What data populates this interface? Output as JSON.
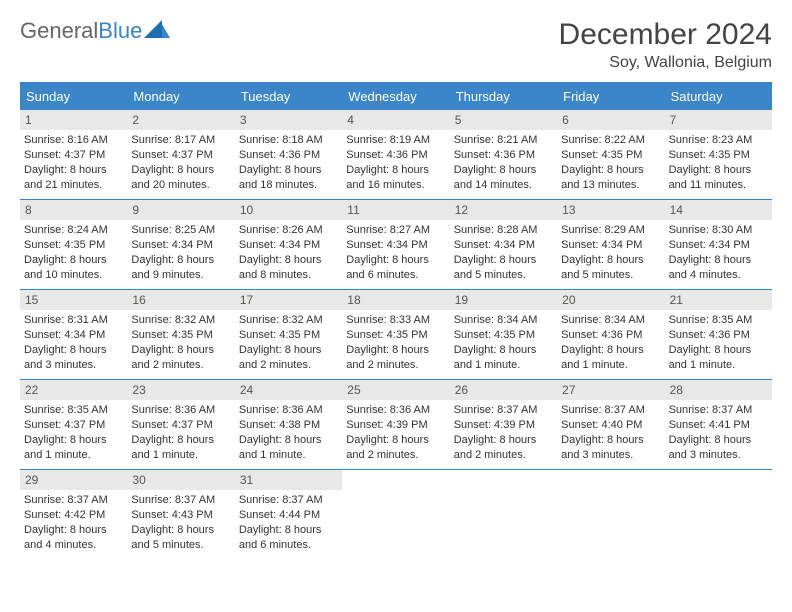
{
  "brand": {
    "part1": "General",
    "part2": "Blue"
  },
  "title": "December 2024",
  "location": "Soy, Wallonia, Belgium",
  "colors": {
    "header_bg": "#3a86c8",
    "daynum_bg": "#e8e8e8",
    "text": "#333333",
    "title_text": "#444444",
    "background": "#ffffff"
  },
  "calendar": {
    "type": "table",
    "day_headers": [
      "Sunday",
      "Monday",
      "Tuesday",
      "Wednesday",
      "Thursday",
      "Friday",
      "Saturday"
    ],
    "days": [
      {
        "n": "1",
        "sunrise": "Sunrise: 8:16 AM",
        "sunset": "Sunset: 4:37 PM",
        "daylight": "Daylight: 8 hours and 21 minutes."
      },
      {
        "n": "2",
        "sunrise": "Sunrise: 8:17 AM",
        "sunset": "Sunset: 4:37 PM",
        "daylight": "Daylight: 8 hours and 20 minutes."
      },
      {
        "n": "3",
        "sunrise": "Sunrise: 8:18 AM",
        "sunset": "Sunset: 4:36 PM",
        "daylight": "Daylight: 8 hours and 18 minutes."
      },
      {
        "n": "4",
        "sunrise": "Sunrise: 8:19 AM",
        "sunset": "Sunset: 4:36 PM",
        "daylight": "Daylight: 8 hours and 16 minutes."
      },
      {
        "n": "5",
        "sunrise": "Sunrise: 8:21 AM",
        "sunset": "Sunset: 4:36 PM",
        "daylight": "Daylight: 8 hours and 14 minutes."
      },
      {
        "n": "6",
        "sunrise": "Sunrise: 8:22 AM",
        "sunset": "Sunset: 4:35 PM",
        "daylight": "Daylight: 8 hours and 13 minutes."
      },
      {
        "n": "7",
        "sunrise": "Sunrise: 8:23 AM",
        "sunset": "Sunset: 4:35 PM",
        "daylight": "Daylight: 8 hours and 11 minutes."
      },
      {
        "n": "8",
        "sunrise": "Sunrise: 8:24 AM",
        "sunset": "Sunset: 4:35 PM",
        "daylight": "Daylight: 8 hours and 10 minutes."
      },
      {
        "n": "9",
        "sunrise": "Sunrise: 8:25 AM",
        "sunset": "Sunset: 4:34 PM",
        "daylight": "Daylight: 8 hours and 9 minutes."
      },
      {
        "n": "10",
        "sunrise": "Sunrise: 8:26 AM",
        "sunset": "Sunset: 4:34 PM",
        "daylight": "Daylight: 8 hours and 8 minutes."
      },
      {
        "n": "11",
        "sunrise": "Sunrise: 8:27 AM",
        "sunset": "Sunset: 4:34 PM",
        "daylight": "Daylight: 8 hours and 6 minutes."
      },
      {
        "n": "12",
        "sunrise": "Sunrise: 8:28 AM",
        "sunset": "Sunset: 4:34 PM",
        "daylight": "Daylight: 8 hours and 5 minutes."
      },
      {
        "n": "13",
        "sunrise": "Sunrise: 8:29 AM",
        "sunset": "Sunset: 4:34 PM",
        "daylight": "Daylight: 8 hours and 5 minutes."
      },
      {
        "n": "14",
        "sunrise": "Sunrise: 8:30 AM",
        "sunset": "Sunset: 4:34 PM",
        "daylight": "Daylight: 8 hours and 4 minutes."
      },
      {
        "n": "15",
        "sunrise": "Sunrise: 8:31 AM",
        "sunset": "Sunset: 4:34 PM",
        "daylight": "Daylight: 8 hours and 3 minutes."
      },
      {
        "n": "16",
        "sunrise": "Sunrise: 8:32 AM",
        "sunset": "Sunset: 4:35 PM",
        "daylight": "Daylight: 8 hours and 2 minutes."
      },
      {
        "n": "17",
        "sunrise": "Sunrise: 8:32 AM",
        "sunset": "Sunset: 4:35 PM",
        "daylight": "Daylight: 8 hours and 2 minutes."
      },
      {
        "n": "18",
        "sunrise": "Sunrise: 8:33 AM",
        "sunset": "Sunset: 4:35 PM",
        "daylight": "Daylight: 8 hours and 2 minutes."
      },
      {
        "n": "19",
        "sunrise": "Sunrise: 8:34 AM",
        "sunset": "Sunset: 4:35 PM",
        "daylight": "Daylight: 8 hours and 1 minute."
      },
      {
        "n": "20",
        "sunrise": "Sunrise: 8:34 AM",
        "sunset": "Sunset: 4:36 PM",
        "daylight": "Daylight: 8 hours and 1 minute."
      },
      {
        "n": "21",
        "sunrise": "Sunrise: 8:35 AM",
        "sunset": "Sunset: 4:36 PM",
        "daylight": "Daylight: 8 hours and 1 minute."
      },
      {
        "n": "22",
        "sunrise": "Sunrise: 8:35 AM",
        "sunset": "Sunset: 4:37 PM",
        "daylight": "Daylight: 8 hours and 1 minute."
      },
      {
        "n": "23",
        "sunrise": "Sunrise: 8:36 AM",
        "sunset": "Sunset: 4:37 PM",
        "daylight": "Daylight: 8 hours and 1 minute."
      },
      {
        "n": "24",
        "sunrise": "Sunrise: 8:36 AM",
        "sunset": "Sunset: 4:38 PM",
        "daylight": "Daylight: 8 hours and 1 minute."
      },
      {
        "n": "25",
        "sunrise": "Sunrise: 8:36 AM",
        "sunset": "Sunset: 4:39 PM",
        "daylight": "Daylight: 8 hours and 2 minutes."
      },
      {
        "n": "26",
        "sunrise": "Sunrise: 8:37 AM",
        "sunset": "Sunset: 4:39 PM",
        "daylight": "Daylight: 8 hours and 2 minutes."
      },
      {
        "n": "27",
        "sunrise": "Sunrise: 8:37 AM",
        "sunset": "Sunset: 4:40 PM",
        "daylight": "Daylight: 8 hours and 3 minutes."
      },
      {
        "n": "28",
        "sunrise": "Sunrise: 8:37 AM",
        "sunset": "Sunset: 4:41 PM",
        "daylight": "Daylight: 8 hours and 3 minutes."
      },
      {
        "n": "29",
        "sunrise": "Sunrise: 8:37 AM",
        "sunset": "Sunset: 4:42 PM",
        "daylight": "Daylight: 8 hours and 4 minutes."
      },
      {
        "n": "30",
        "sunrise": "Sunrise: 8:37 AM",
        "sunset": "Sunset: 4:43 PM",
        "daylight": "Daylight: 8 hours and 5 minutes."
      },
      {
        "n": "31",
        "sunrise": "Sunrise: 8:37 AM",
        "sunset": "Sunset: 4:44 PM",
        "daylight": "Daylight: 8 hours and 6 minutes."
      }
    ]
  }
}
